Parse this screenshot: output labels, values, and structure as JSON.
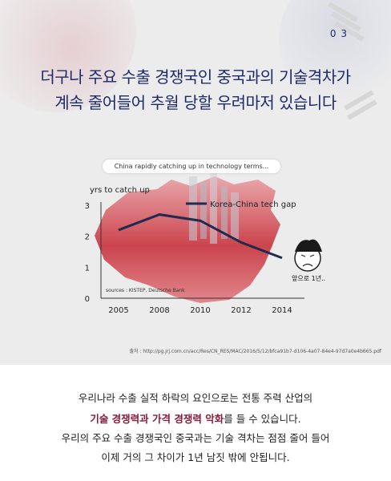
{
  "page_number": "0 3",
  "headline": {
    "line1": "더구나 주요 수출 경쟁국인 중국과의 기술격차가",
    "line2": "계속 줄어들어 추월 당할 우려마저 있습니다"
  },
  "chart_data": {
    "type": "line",
    "title": "China rapidly catching up in technology terms...",
    "ylabel": "yrs to catch up",
    "xlabel": "",
    "x": [
      2005,
      2008,
      2010,
      2012,
      2014
    ],
    "ylim": [
      0,
      3
    ],
    "yticks": [
      "0",
      "1",
      "2",
      "3"
    ],
    "xticks": [
      "2005",
      "2008",
      "2010",
      "2012",
      "2014"
    ],
    "series": [
      {
        "name": "Korea-China tech gap",
        "values": [
          2.2,
          2.7,
          2.5,
          1.8,
          1.3
        ],
        "color": "#1f2a4e"
      }
    ],
    "legend_position": "top-right",
    "source": "sources : KISTEP, Deutsche Bank",
    "annotation": "앞으로 1년.."
  },
  "source_url": "출처 : http://pg.jrj.com.cn/acc/Res/CN_RES/MAC/2016/5/12/bfca91b7-d106-4a07-84e4-97d7a0e4b665.pdf",
  "bottom": {
    "line1": "우리나라 수출 실적 하락의 요인으로는 전통 주력 산업의",
    "line2_highlight": "기술 경쟁력과 가격 경쟁력 악화",
    "line2_rest": "를 들 수 있습니다.",
    "line3": "우리의 주요 수출 경쟁국인 중국과는 기술 격차는 점점 줄어 들어",
    "line4": "이제 거의 그 차이가 1년 남짓 밖에 안됩니다."
  },
  "colors": {
    "accent": "#1f2a6e",
    "highlight": "#8a1c3a",
    "map": "#c8323c"
  }
}
